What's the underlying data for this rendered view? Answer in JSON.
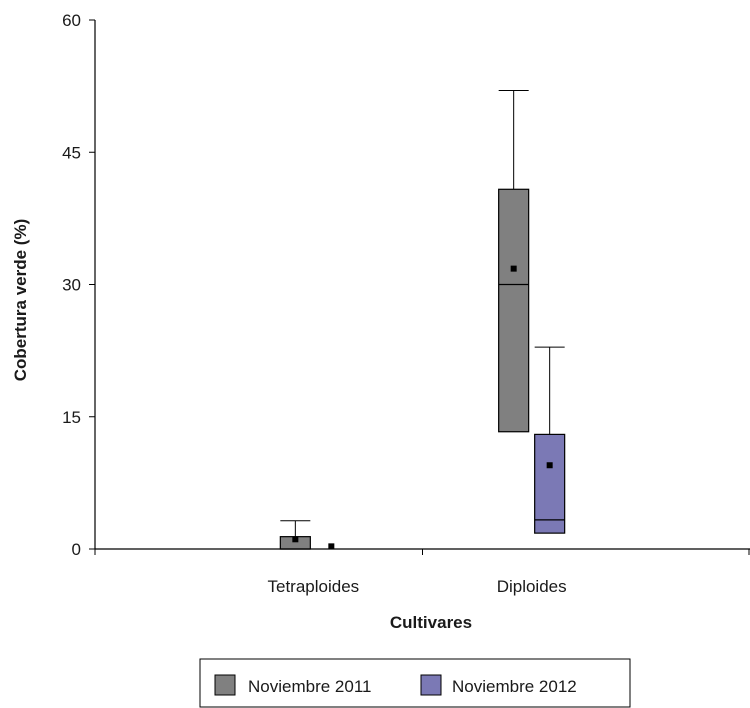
{
  "chart_data": {
    "type": "boxplot",
    "title": "",
    "xlabel": "Cultivares",
    "ylabel": "Cobertura verde (%)",
    "ylim": [
      0,
      60
    ],
    "yticks": [
      "0",
      "15",
      "30",
      "45",
      "60"
    ],
    "categories": [
      "Tetraploides",
      "Diploides"
    ],
    "grid": false,
    "legend_position": "bottom",
    "series": [
      {
        "name": "Noviembre 2011",
        "color": "#808080",
        "boxes": [
          {
            "category": "Tetraploides",
            "whisker_low": 0,
            "q1": 0,
            "median": 0,
            "q3": 1.4,
            "whisker_high": 3.2,
            "mean": 1.1
          },
          {
            "category": "Diploides",
            "whisker_low": 13.3,
            "q1": 13.3,
            "median": 30,
            "q3": 40.8,
            "whisker_high": 52,
            "mean": 31.8
          }
        ]
      },
      {
        "name": "Noviembre 2012",
        "color": "#7b79b5",
        "boxes": [
          {
            "category": "Tetraploides",
            "whisker_low": 0,
            "q1": 0,
            "median": 0,
            "q3": 0,
            "whisker_high": 0,
            "mean": 0.3
          },
          {
            "category": "Diploides",
            "whisker_low": 1.8,
            "q1": 1.8,
            "median": 3.3,
            "q3": 13,
            "whisker_high": 22.9,
            "mean": 9.5
          }
        ]
      }
    ]
  }
}
